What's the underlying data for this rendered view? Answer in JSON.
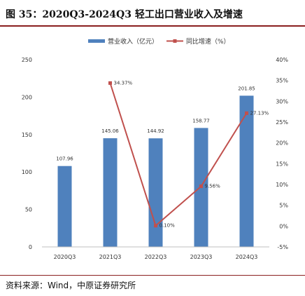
{
  "figure": {
    "title": "图 35：2020Q3-2024Q3 轻工出口营业收入及增速",
    "source": "资料来源：Wind，中原证券研究所"
  },
  "colors": {
    "bar": "#4f81bd",
    "line": "#c0504d",
    "rule": "#8a1f1f"
  },
  "chart_data": {
    "type": "bar",
    "categories": [
      "2020Q3",
      "2021Q3",
      "2022Q3",
      "2023Q3",
      "2024Q3"
    ],
    "series": [
      {
        "name": "营业收入（亿元）",
        "type": "bar",
        "axis": "left",
        "values": [
          107.96,
          145.06,
          144.92,
          158.77,
          201.85
        ],
        "labels": [
          "107.96",
          "145.06",
          "144.92",
          "158.77",
          "201.85"
        ]
      },
      {
        "name": "同比增速（%）",
        "type": "line",
        "axis": "right",
        "values": [
          null,
          34.37,
          0.1,
          9.56,
          27.13
        ],
        "labels": [
          "",
          "34.37%",
          "0.10%",
          "9.56%",
          "27.13%"
        ]
      }
    ],
    "y_left": {
      "lim": [
        0,
        250
      ],
      "ticks": [
        0,
        50,
        100,
        150,
        200,
        250
      ],
      "tick_labels": [
        "0",
        "50",
        "100",
        "150",
        "200",
        "250"
      ]
    },
    "y_right": {
      "lim": [
        -5,
        40
      ],
      "ticks": [
        -5,
        0,
        5,
        10,
        15,
        20,
        25,
        30,
        35,
        40
      ],
      "tick_labels": [
        "-5%",
        "0%",
        "5%",
        "10%",
        "15%",
        "20%",
        "25%",
        "30%",
        "35%",
        "40%"
      ]
    },
    "legend": "top-center",
    "grid": false
  }
}
